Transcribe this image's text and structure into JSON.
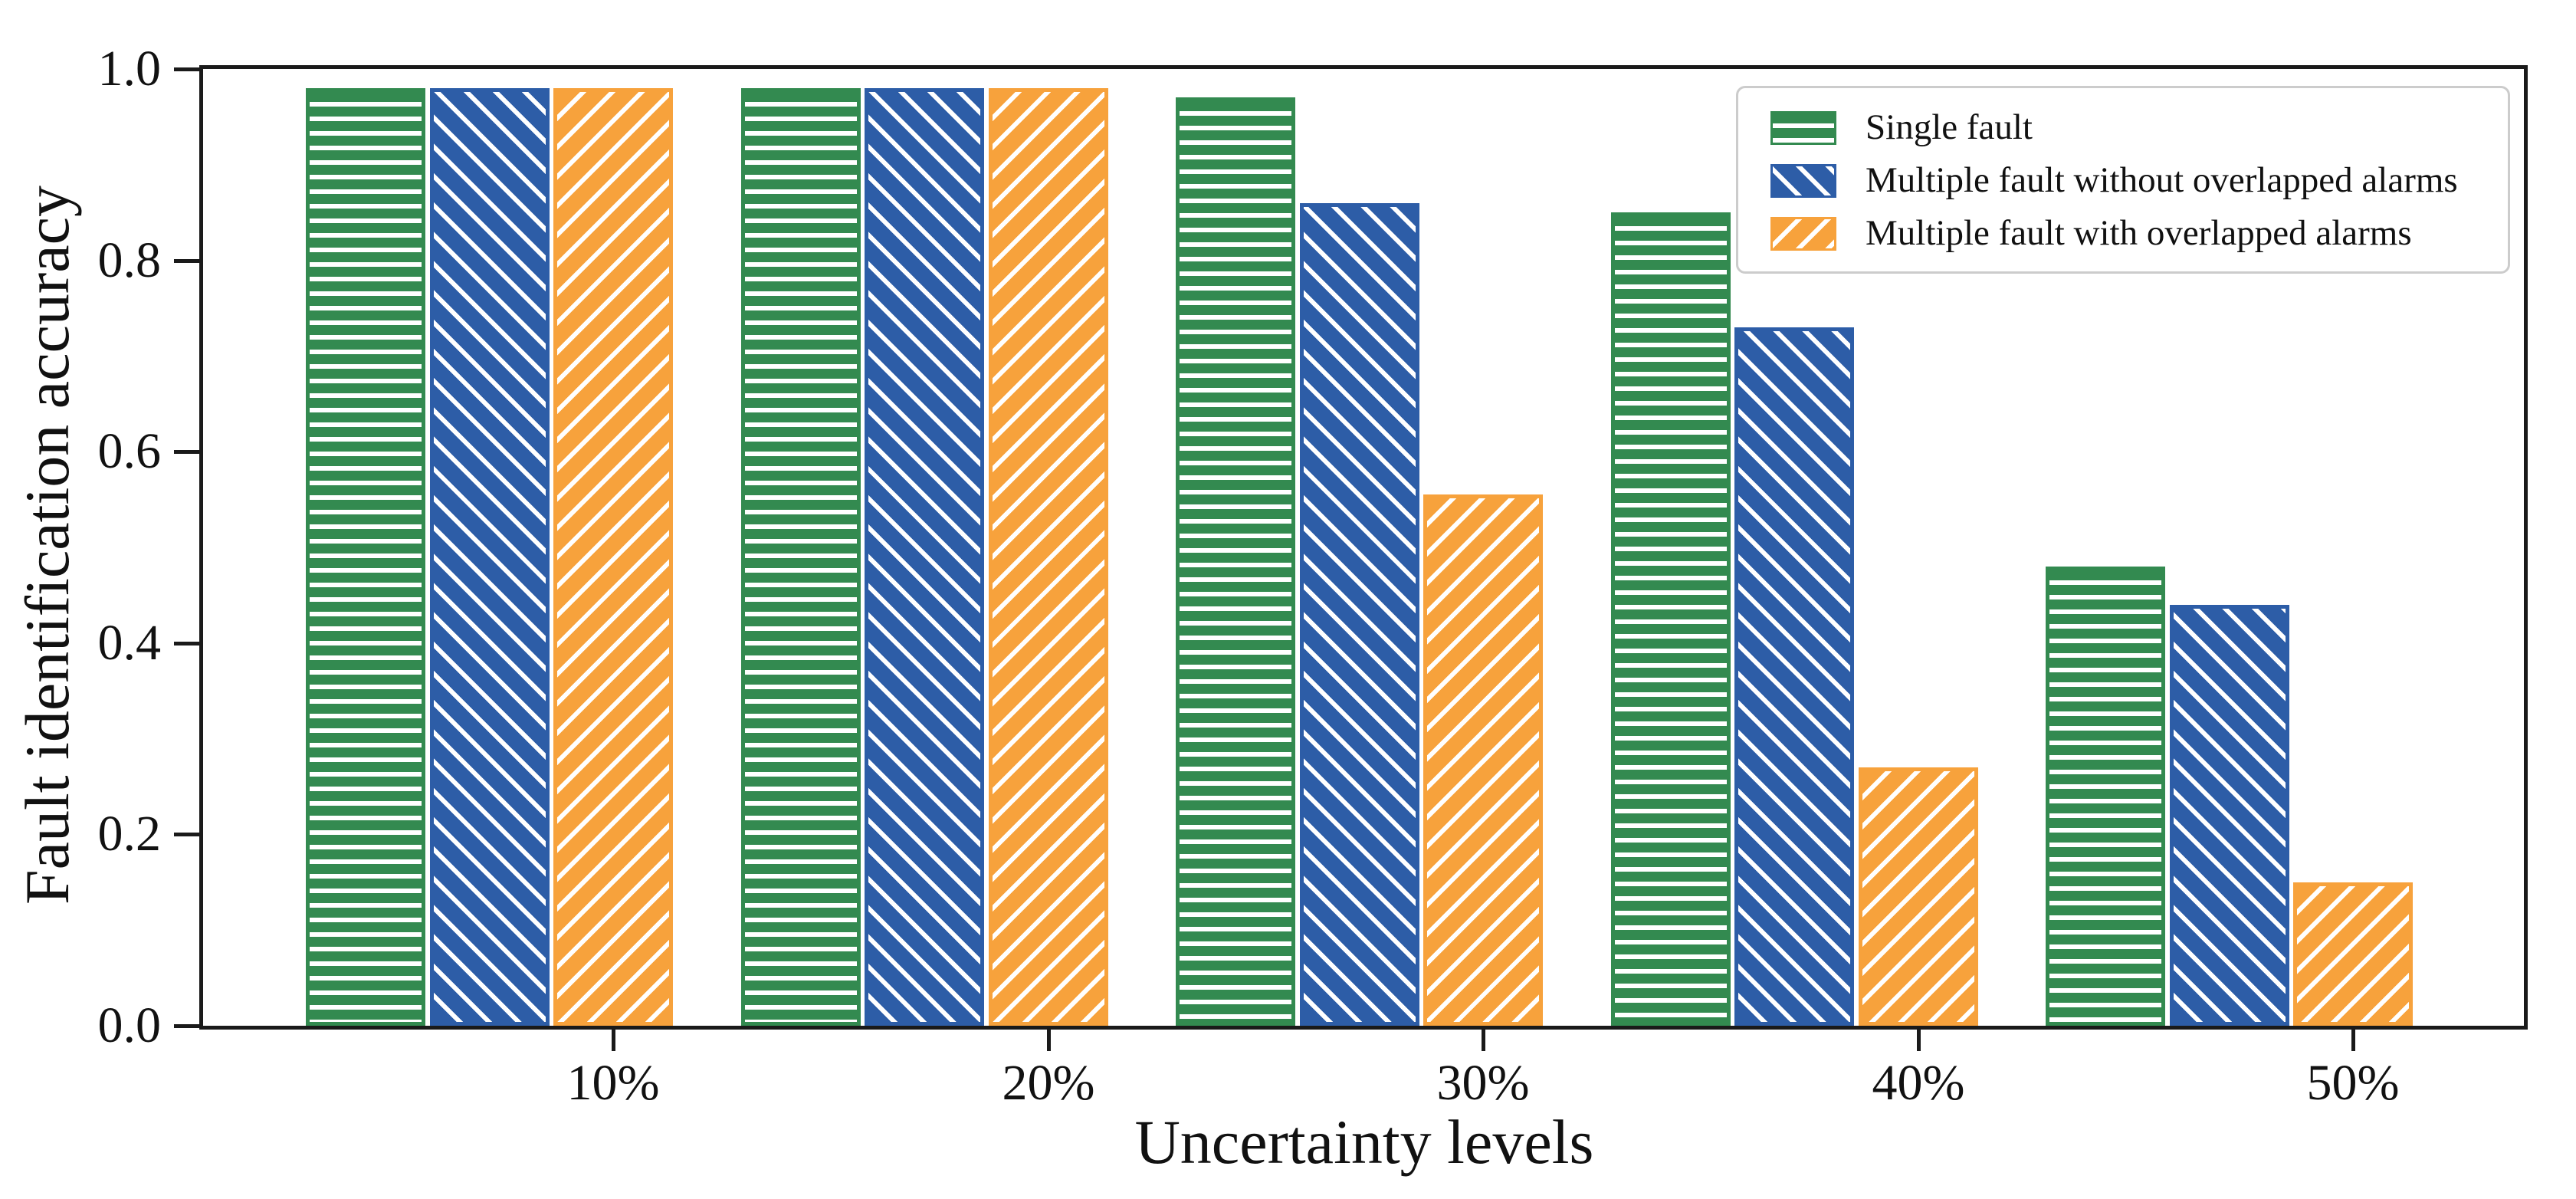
{
  "chart_data": {
    "type": "bar",
    "categories": [
      "10%",
      "20%",
      "30%",
      "40%",
      "50%"
    ],
    "series": [
      {
        "name": "Single fault",
        "color": "#338a50",
        "hatch": "horizontal",
        "values": [
          0.98,
          0.98,
          0.97,
          0.85,
          0.48
        ]
      },
      {
        "name": "Multiple fault without overlapped alarms",
        "color": "#2d5da7",
        "hatch": "backslash",
        "values": [
          0.98,
          0.98,
          0.86,
          0.73,
          0.44
        ]
      },
      {
        "name": "Multiple fault with overlapped alarms",
        "color": "#f7a23c",
        "hatch": "slash",
        "values": [
          0.98,
          0.98,
          0.555,
          0.27,
          0.15
        ]
      }
    ],
    "xlabel": "Uncertainty levels",
    "ylabel": "Fault identification accuracy",
    "ylim": [
      0,
      1
    ],
    "yticks": [
      "0.0",
      "0.2",
      "0.4",
      "0.6",
      "0.8",
      "1.0"
    ],
    "legend_position": "upper right",
    "grid": false
  }
}
